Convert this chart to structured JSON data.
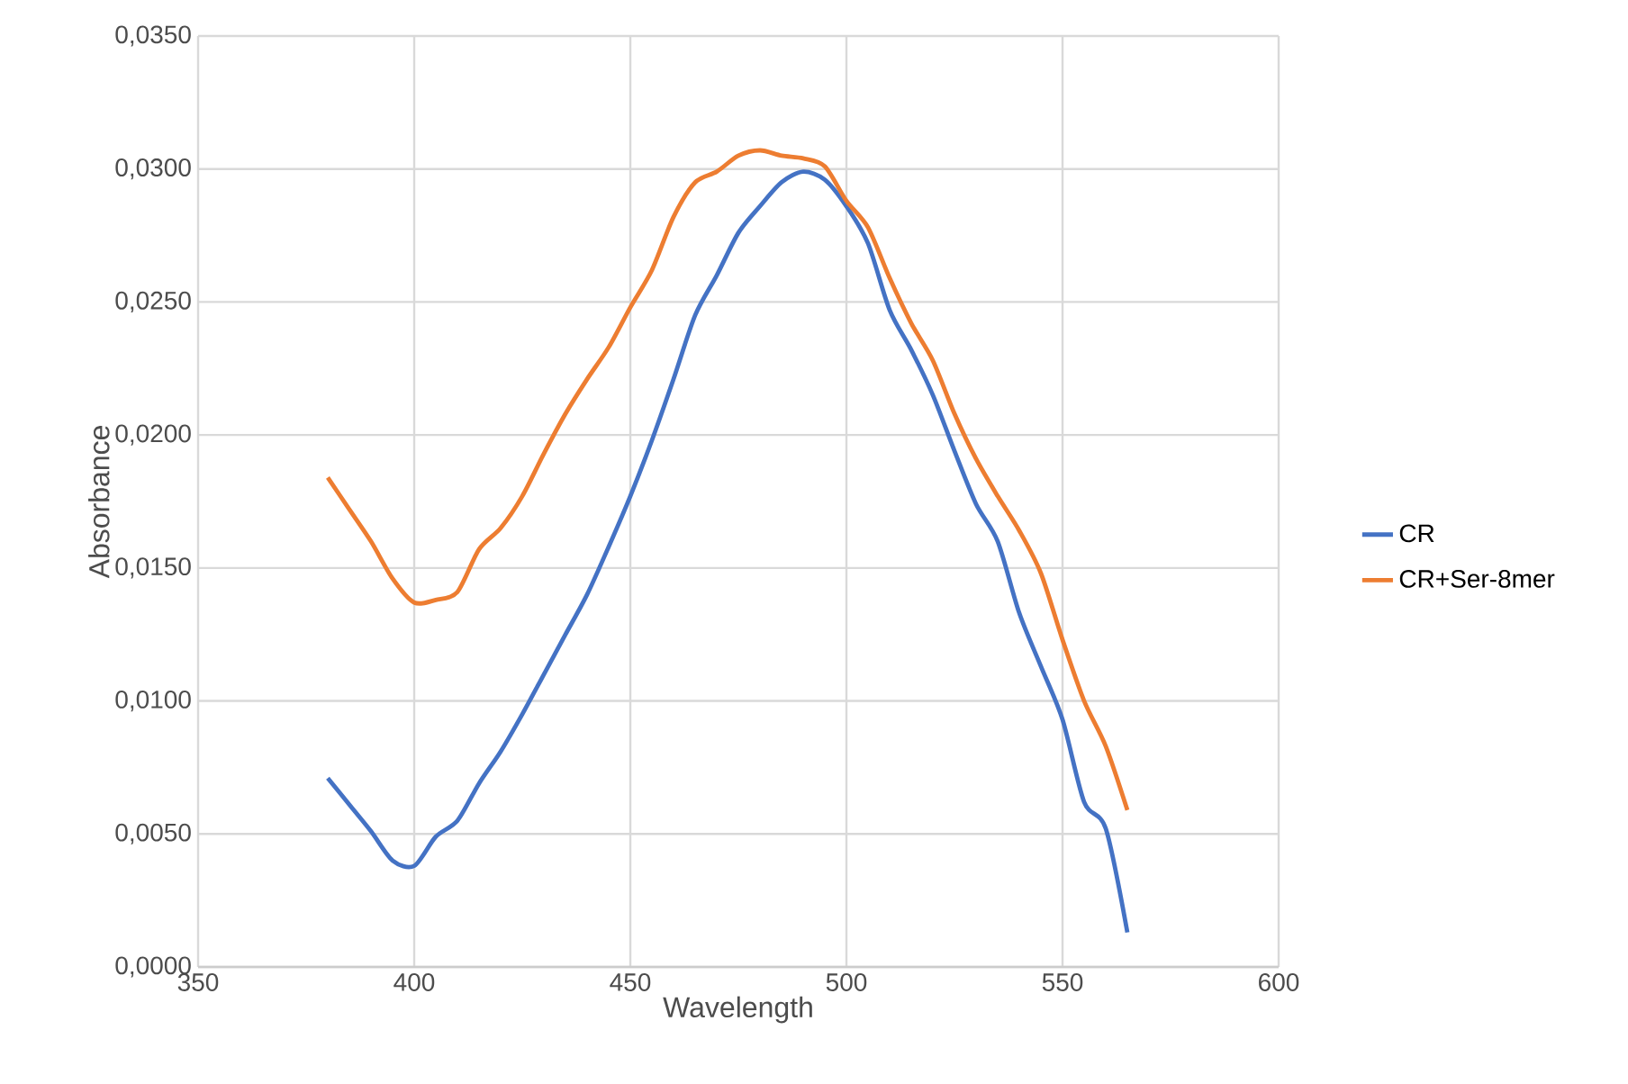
{
  "chart_data": {
    "type": "line",
    "xlabel": "Wavelength",
    "ylabel": "Absorbance",
    "xlim": [
      350,
      600
    ],
    "xticks": [
      350,
      400,
      450,
      500,
      550,
      600
    ],
    "ylim": [
      0,
      0.035
    ],
    "yticks": [
      {
        "value": 0,
        "label": "0,0000"
      },
      {
        "value": 0.005,
        "label": "0,0050"
      },
      {
        "value": 0.01,
        "label": "0,0100"
      },
      {
        "value": 0.015,
        "label": "0,0150"
      },
      {
        "value": 0.02,
        "label": "0,0200"
      },
      {
        "value": 0.025,
        "label": "0,0250"
      },
      {
        "value": 0.03,
        "label": "0,0300"
      },
      {
        "value": 0.035,
        "label": "0,0350"
      }
    ],
    "grid": true,
    "legend": "right",
    "marker": "none",
    "line_style": "solid",
    "x": [
      380,
      385,
      390,
      395,
      400,
      405,
      410,
      415,
      420,
      425,
      430,
      435,
      440,
      445,
      450,
      455,
      460,
      465,
      470,
      475,
      480,
      485,
      490,
      495,
      500,
      505,
      510,
      515,
      520,
      525,
      530,
      535,
      540,
      545,
      550,
      555,
      560,
      565
    ],
    "series": [
      {
        "name": "CR",
        "color": "#4472c4",
        "values": [
          0.0071,
          0.0061,
          0.0051,
          0.004,
          0.0038,
          0.0049,
          0.0055,
          0.0069,
          0.0081,
          0.0095,
          0.011,
          0.0125,
          0.014,
          0.0158,
          0.0177,
          0.0198,
          0.0221,
          0.0245,
          0.026,
          0.0276,
          0.0286,
          0.0295,
          0.0299,
          0.0296,
          0.0286,
          0.0272,
          0.0247,
          0.0232,
          0.0215,
          0.0194,
          0.0174,
          0.016,
          0.0133,
          0.0113,
          0.0093,
          0.0062,
          0.0052,
          0.0013
        ]
      },
      {
        "name": "CR+Ser-8mer",
        "color": "#ed7d31",
        "values": [
          0.0184,
          0.0172,
          0.016,
          0.0146,
          0.0137,
          0.0138,
          0.0141,
          0.0157,
          0.0165,
          0.0177,
          0.0193,
          0.0208,
          0.0221,
          0.0233,
          0.0248,
          0.0262,
          0.0282,
          0.0295,
          0.0299,
          0.0305,
          0.0307,
          0.0305,
          0.0304,
          0.0301,
          0.0288,
          0.0278,
          0.0259,
          0.0242,
          0.0228,
          0.0208,
          0.0191,
          0.0177,
          0.0164,
          0.0148,
          0.0123,
          0.01,
          0.0083,
          0.0059
        ]
      }
    ]
  }
}
